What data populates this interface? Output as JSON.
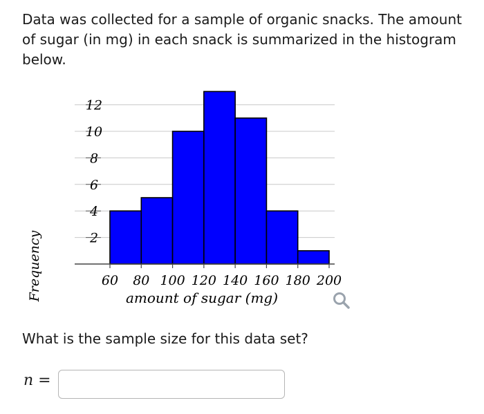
{
  "question": "Data was collected for a sample of organic snacks. The amount of sugar (in mg) in each snack is summarized in the histogram below.",
  "sub_question": "What is the sample size for this data set?",
  "answer": {
    "label": "n =",
    "value": ""
  },
  "zoom_icon": "magnify-icon",
  "colors": {
    "bar_fill": "#0000ff",
    "bar_stroke": "#000000",
    "grid": "#c8c8c8",
    "icon": "#9aa3ad"
  },
  "chart_data": {
    "type": "bar",
    "histogram": true,
    "title": "",
    "xlabel": "amount of sugar (mg)",
    "ylabel": "Frequency",
    "x_ticks": [
      "60",
      "80",
      "100",
      "120",
      "140",
      "160",
      "180",
      "200"
    ],
    "y_ticks": [
      "2",
      "4",
      "6",
      "8",
      "10",
      "12"
    ],
    "bins": [
      {
        "from": 60,
        "to": 80,
        "value": 4
      },
      {
        "from": 80,
        "to": 100,
        "value": 5
      },
      {
        "from": 100,
        "to": 120,
        "value": 10
      },
      {
        "from": 120,
        "to": 140,
        "value": 13
      },
      {
        "from": 140,
        "to": 160,
        "value": 11
      },
      {
        "from": 160,
        "to": 180,
        "value": 4
      },
      {
        "from": 180,
        "to": 200,
        "value": 1
      }
    ],
    "xlim": [
      60,
      200
    ],
    "ylim": [
      0,
      13
    ],
    "grid": true
  }
}
